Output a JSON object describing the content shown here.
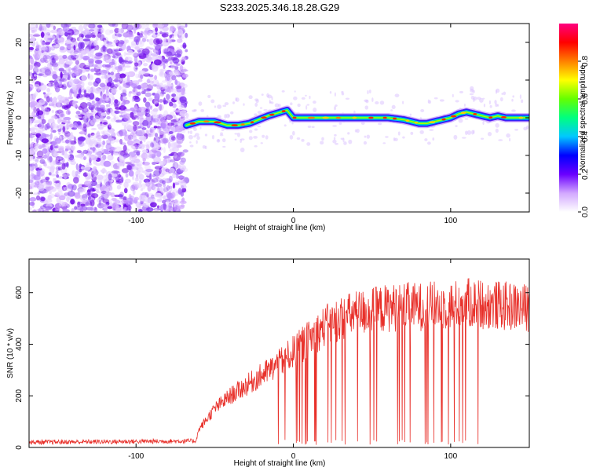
{
  "title": "S233.2025.346.18.28.G29",
  "chart_data": [
    {
      "type": "heatmap",
      "name": "spectrogram",
      "xlabel": "Height of straight line (km)",
      "ylabel": "Frequency (Hz)",
      "xlim": [
        -168,
        150
      ],
      "ylim": [
        -25,
        25
      ],
      "xticks": [
        -100,
        0,
        100
      ],
      "xtick_labels": [
        "-100",
        "0",
        "100"
      ],
      "yticks": [
        -20,
        -10,
        0,
        10,
        20
      ],
      "ytick_labels": [
        "-20",
        "-10",
        "0",
        "10",
        "20"
      ],
      "noise_region_x": [
        -168,
        -68
      ],
      "signal_start_x": -68,
      "ridge": {
        "x": [
          -68,
          -60,
          -50,
          -42,
          -35,
          -28,
          -22,
          -16,
          -12,
          -8,
          -4,
          0,
          10,
          20,
          30,
          40,
          50,
          60,
          70,
          80,
          85,
          90,
          95,
          100,
          105,
          110,
          115,
          120,
          125,
          130,
          135,
          140,
          148
        ],
        "y": [
          -2,
          -1,
          -1,
          -2,
          -2,
          -1.5,
          -0.5,
          0.5,
          1,
          1.5,
          2,
          0,
          0,
          0,
          0,
          0,
          0,
          0,
          -0.5,
          -1.5,
          -1.5,
          -1,
          -0.5,
          0,
          1,
          1.5,
          1,
          0.5,
          0,
          0.5,
          0,
          0,
          0
        ]
      },
      "colorbar": {
        "label": "Normalized spectral amplitude",
        "range": [
          0,
          1
        ],
        "ticks": [
          0.0,
          0.2,
          0.4,
          0.6,
          0.8
        ],
        "tick_labels": [
          "0.0",
          "0.2",
          "0.4",
          "0.6",
          "0.8"
        ],
        "colors": [
          "#ffffff",
          "#d2a8ff",
          "#6a00ff",
          "#0000ff",
          "#00c8ff",
          "#00ff80",
          "#64ff00",
          "#ffff00",
          "#ff8000",
          "#ff0000",
          "#ff0080"
        ]
      }
    },
    {
      "type": "line",
      "name": "snr",
      "xlabel": "Height of straight line (km)",
      "ylabel": "SNR (10 * v/v)",
      "xlim": [
        -168,
        150
      ],
      "ylim": [
        0,
        730
      ],
      "xticks": [
        -100,
        0,
        100
      ],
      "xtick_labels": [
        "-100",
        "0",
        "100"
      ],
      "yticks": [
        0,
        200,
        400,
        600
      ],
      "ytick_labels": [
        "0",
        "200",
        "400",
        "600"
      ],
      "line_color": "#e8302a",
      "envelope": {
        "x": [
          -168,
          -62,
          -60,
          -50,
          -40,
          -30,
          -20,
          -10,
          0,
          10,
          20,
          30,
          40,
          50,
          60,
          70,
          80,
          90,
          100,
          110,
          120,
          130,
          140,
          150
        ],
        "y": [
          20,
          25,
          70,
          150,
          200,
          240,
          280,
          320,
          370,
          420,
          470,
          500,
          520,
          530,
          540,
          545,
          545,
          550,
          550,
          560,
          555,
          550,
          545,
          540
        ]
      },
      "dropout_region_x": [
        -10,
        120
      ]
    }
  ]
}
